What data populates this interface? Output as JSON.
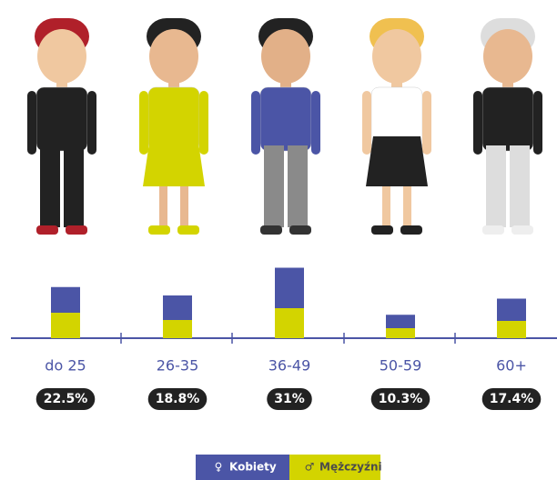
{
  "chart_data": {
    "type": "stacked_bar",
    "categories": [
      "do 25",
      "26-35",
      "36-49",
      "50-59",
      "60+"
    ],
    "series": [
      {
        "name": "Mężczyźni",
        "color": "#d3d400",
        "values": [
          11.2,
          8,
          13.2,
          4.4,
          7.6
        ]
      },
      {
        "name": "Kobiety",
        "color": "#4b55a6",
        "values": [
          11.3,
          10.8,
          17.8,
          5.9,
          9.8
        ]
      }
    ],
    "totals": [
      22.5,
      18.8,
      31,
      10.3,
      17.4
    ],
    "total_labels": [
      "22.5%",
      "18.8%",
      "31%",
      "10.3%",
      "17.4%"
    ]
  }
}
